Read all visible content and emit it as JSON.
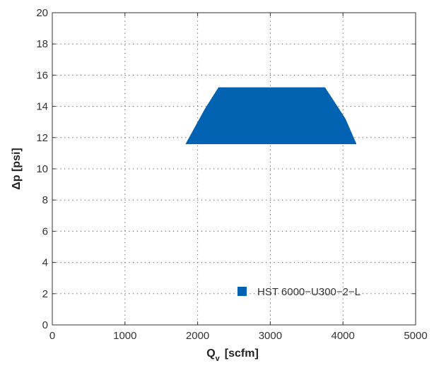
{
  "chart_data": {
    "type": "area",
    "xlabel": "Q",
    "xlabel_sub": "v",
    "xlabel_unit": "[scfm]",
    "ylabel": "Δp [psi]",
    "xlim": [
      0,
      5000
    ],
    "ylim": [
      0,
      20
    ],
    "xticks": [
      0,
      1000,
      2000,
      3000,
      4000,
      5000
    ],
    "yticks": [
      0,
      2,
      4,
      6,
      8,
      10,
      12,
      14,
      16,
      18,
      20
    ],
    "grid": true,
    "legend_position": "bottom-right",
    "series": [
      {
        "name": "HST 6000−U300−2−L",
        "color": "#0062b1",
        "x": [
          1840,
          2100,
          2290,
          3750,
          4030,
          4180,
          4180,
          1840
        ],
        "y": [
          11.6,
          13.8,
          15.2,
          15.2,
          13.2,
          11.6,
          11.6,
          11.6
        ]
      }
    ]
  }
}
